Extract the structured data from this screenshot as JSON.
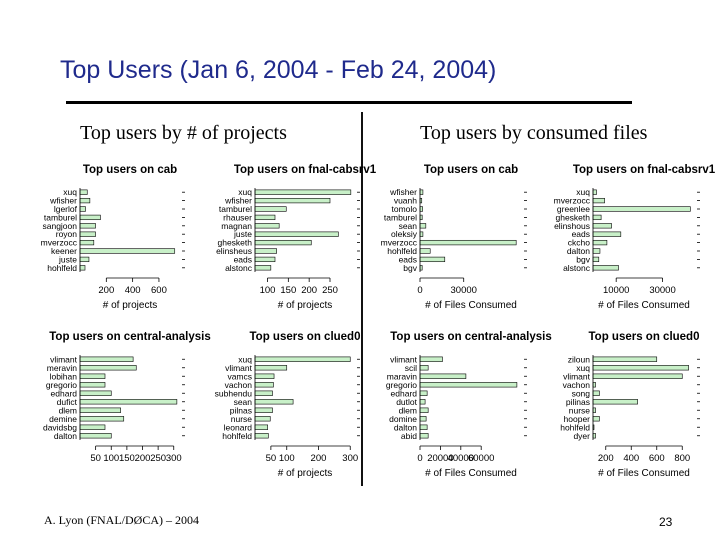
{
  "slide": {
    "title": "Top Users (Jan 6, 2004 - Feb 24, 2004)",
    "left_heading": "Top users by # of projects",
    "right_heading": "Top users by consumed files",
    "footer_left": "A. Lyon (FNAL/DØCA) – 2004",
    "page_number": "23"
  },
  "style": {
    "bar_fill": "#c8f0c8",
    "bar_stroke": "#000000",
    "title_color": "#1f2a8c"
  },
  "chart_data": [
    {
      "type": "bar",
      "orientation": "horizontal",
      "title": "Top users on cab",
      "xlabel": "# of projects",
      "categories": [
        "xuq",
        "wfisher",
        "lgerlof",
        "tamburel",
        "sangjoon",
        "royon",
        "mverzocc",
        "keener",
        "juste",
        "hohlfeld"
      ],
      "values": [
        55,
        75,
        42,
        155,
        118,
        118,
        105,
        720,
        68,
        38
      ],
      "xlim": [
        0,
        760
      ],
      "ticks": [
        200,
        400,
        600
      ],
      "tick_labels": [
        "200",
        "400",
        "600"
      ]
    },
    {
      "type": "bar",
      "orientation": "horizontal",
      "title": "Top users on fnal-cabsrv1",
      "xlabel": "# of projects",
      "categories": [
        "xuq",
        "wfisher",
        "tamburel",
        "rhauser",
        "magnan",
        "juste",
        "ghesketh",
        "elinsheus",
        "eads",
        "alstonc"
      ],
      "values": [
        300,
        250,
        145,
        118,
        128,
        270,
        205,
        122,
        118,
        108
      ],
      "xlim": [
        70,
        310
      ],
      "ticks": [
        100,
        150,
        200,
        250
      ],
      "tick_labels": [
        "100",
        "150",
        "200",
        "250"
      ]
    },
    {
      "type": "bar",
      "orientation": "horizontal",
      "title": "Top users on cab",
      "xlabel": "# of Files Consumed",
      "categories": [
        "wfisher",
        "vuanh",
        "tomolo",
        "tamburel",
        "sean",
        "oleksiy",
        "mverzocc",
        "hohlfeld",
        "eads",
        "bgv"
      ],
      "values": [
        2000,
        1200,
        1800,
        1500,
        4000,
        2000,
        66000,
        7000,
        17000,
        1500
      ],
      "xlim": [
        0,
        70000
      ],
      "ticks": [
        0,
        30000
      ],
      "tick_labels": [
        "0",
        "30000"
      ]
    },
    {
      "type": "bar",
      "orientation": "horizontal",
      "title": "Top users on fnal-cabsrv1",
      "xlabel": "# of Files Consumed",
      "categories": [
        "xuq",
        "mverzocc",
        "greenlee",
        "ghesketh",
        "elinshous",
        "eads",
        "ckcho",
        "dalton",
        "bgv",
        "alstonc"
      ],
      "values": [
        1500,
        5000,
        42000,
        3500,
        8000,
        12000,
        6000,
        3000,
        2500,
        11000
      ],
      "xlim": [
        0,
        44000
      ],
      "ticks": [
        10000,
        30000
      ],
      "tick_labels": [
        "10000",
        "30000"
      ]
    },
    {
      "type": "bar",
      "orientation": "horizontal",
      "title": "Top users on central-analysis",
      "xlabel": "",
      "categories": [
        "vlimant",
        "meravin",
        "lobihan",
        "gregorio",
        "edhard",
        "dufict",
        "dlem",
        "demine",
        "davidsbg",
        "dalton"
      ],
      "values": [
        170,
        180,
        80,
        80,
        100,
        310,
        130,
        140,
        80,
        100
      ],
      "xlim": [
        0,
        320
      ],
      "ticks": [
        50,
        100,
        150,
        200,
        250,
        300
      ],
      "tick_labels": [
        "50",
        "100",
        "150",
        "200",
        "250",
        "300"
      ]
    },
    {
      "type": "bar",
      "orientation": "horizontal",
      "title": "Top users on clued0",
      "xlabel": "# of projects",
      "categories": [
        "xuq",
        "vlimant",
        "vamcs",
        "vachon",
        "subhendu",
        "sean",
        "pilnas",
        "nurse",
        "leonard",
        "hohlfeld"
      ],
      "values": [
        300,
        100,
        60,
        58,
        55,
        120,
        55,
        48,
        40,
        42
      ],
      "xlim": [
        0,
        315
      ],
      "ticks": [
        50,
        100,
        200,
        300
      ],
      "tick_labels": [
        "50",
        "100",
        "200",
        "300"
      ]
    },
    {
      "type": "bar",
      "orientation": "horizontal",
      "title": "Top users on central-analysis",
      "xlabel": "# of Files Consumed",
      "categories": [
        "vlimant",
        "scil",
        "maravin",
        "gregorio",
        "edhard",
        "dutlot",
        "dlem",
        "domine",
        "dalton",
        "abid"
      ],
      "values": [
        22000,
        8000,
        45000,
        95000,
        7000,
        5000,
        8000,
        6000,
        7000,
        8000
      ],
      "xlim": [
        0,
        100000
      ],
      "ticks": [
        0,
        20000,
        40000,
        60000
      ],
      "tick_labels": [
        "0",
        "20000",
        "40000",
        "60000"
      ]
    },
    {
      "type": "bar",
      "orientation": "horizontal",
      "title": "Top users on clued0",
      "xlabel": "# of Files Consumed",
      "categories": [
        "ziloun",
        "xuq",
        "vlimant",
        "vachon",
        "song",
        "pilinas",
        "nurse",
        "hooper",
        "hohlfeld",
        "dyer"
      ],
      "values": [
        600,
        850,
        800,
        120,
        150,
        450,
        120,
        150,
        100,
        120
      ],
      "xlim": [
        100,
        900
      ],
      "ticks": [
        200,
        400,
        600,
        800
      ],
      "tick_labels": [
        "200",
        "400",
        "600",
        "800"
      ]
    }
  ]
}
